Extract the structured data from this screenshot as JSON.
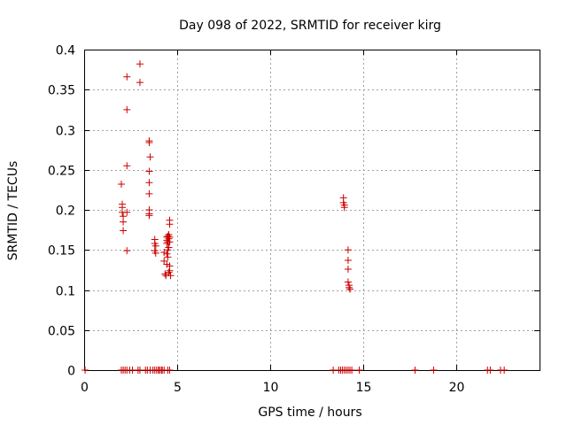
{
  "chart_data": {
    "type": "scatter",
    "title": "Day 098 of 2022, SRMTID for receiver kirg",
    "xlabel": "GPS time / hours",
    "ylabel": "SRMTID / TECUs",
    "xlim": [
      0,
      24.5
    ],
    "ylim": [
      0,
      0.4
    ],
    "xticks": [
      0,
      5,
      10,
      15,
      20
    ],
    "yticks": [
      0,
      0.05,
      0.1,
      0.15,
      0.2,
      0.25,
      0.3,
      0.35,
      0.4
    ],
    "xtick_labels": [
      "0",
      "5",
      "10",
      "15",
      "20"
    ],
    "ytick_labels": [
      "0",
      "0.05",
      "0.1",
      "0.15",
      "0.2",
      "0.25",
      "0.3",
      "0.35",
      "0.4"
    ],
    "grid": true,
    "marker": "+",
    "marker_color": "#cc0000",
    "series": [
      {
        "name": "SRMTID",
        "points": [
          [
            2.0,
            0.232
          ],
          [
            2.05,
            0.207
          ],
          [
            2.05,
            0.203
          ],
          [
            2.05,
            0.197
          ],
          [
            2.1,
            0.192
          ],
          [
            2.1,
            0.185
          ],
          [
            2.1,
            0.174
          ],
          [
            2.3,
            0.366
          ],
          [
            2.3,
            0.325
          ],
          [
            2.3,
            0.255
          ],
          [
            2.3,
            0.197
          ],
          [
            2.3,
            0.149
          ],
          [
            3.0,
            0.382
          ],
          [
            3.0,
            0.359
          ],
          [
            3.5,
            0.286
          ],
          [
            3.5,
            0.284
          ],
          [
            3.55,
            0.266
          ],
          [
            3.5,
            0.248
          ],
          [
            3.5,
            0.234
          ],
          [
            3.5,
            0.22
          ],
          [
            3.5,
            0.2
          ],
          [
            3.5,
            0.195
          ],
          [
            3.5,
            0.193
          ],
          [
            3.8,
            0.163
          ],
          [
            3.8,
            0.158
          ],
          [
            3.85,
            0.155
          ],
          [
            3.8,
            0.149
          ],
          [
            3.85,
            0.146
          ],
          [
            4.3,
            0.147
          ],
          [
            4.3,
            0.136
          ],
          [
            4.35,
            0.12
          ],
          [
            4.4,
            0.118
          ],
          [
            4.45,
            0.166
          ],
          [
            4.45,
            0.162
          ],
          [
            4.45,
            0.158
          ],
          [
            4.45,
            0.145
          ],
          [
            4.45,
            0.132
          ],
          [
            4.5,
            0.167
          ],
          [
            4.5,
            0.16
          ],
          [
            4.5,
            0.15
          ],
          [
            4.5,
            0.141
          ],
          [
            4.55,
            0.169
          ],
          [
            4.55,
            0.164
          ],
          [
            4.55,
            0.153
          ],
          [
            4.55,
            0.122
          ],
          [
            4.6,
            0.187
          ],
          [
            4.6,
            0.182
          ],
          [
            4.6,
            0.166
          ],
          [
            4.6,
            0.16
          ],
          [
            4.6,
            0.13
          ],
          [
            4.6,
            0.124
          ],
          [
            4.65,
            0.118
          ],
          [
            13.95,
            0.215
          ],
          [
            13.95,
            0.209
          ],
          [
            14.0,
            0.206
          ],
          [
            14.0,
            0.203
          ],
          [
            14.2,
            0.15
          ],
          [
            14.2,
            0.137
          ],
          [
            14.2,
            0.126
          ],
          [
            14.2,
            0.11
          ],
          [
            14.25,
            0.106
          ],
          [
            14.25,
            0.103
          ],
          [
            14.3,
            0.101
          ],
          [
            0.05,
            0
          ],
          [
            2.0,
            0
          ],
          [
            2.1,
            0
          ],
          [
            2.2,
            0
          ],
          [
            2.3,
            0
          ],
          [
            2.45,
            0
          ],
          [
            2.6,
            0
          ],
          [
            2.9,
            0
          ],
          [
            3.0,
            0
          ],
          [
            3.3,
            0
          ],
          [
            3.4,
            0
          ],
          [
            3.55,
            0
          ],
          [
            3.7,
            0
          ],
          [
            3.8,
            0
          ],
          [
            3.9,
            0
          ],
          [
            4.0,
            0
          ],
          [
            4.05,
            0
          ],
          [
            4.15,
            0
          ],
          [
            4.2,
            0
          ],
          [
            4.3,
            0
          ],
          [
            4.5,
            0
          ],
          [
            4.6,
            0
          ],
          [
            13.4,
            0
          ],
          [
            13.7,
            0
          ],
          [
            13.8,
            0
          ],
          [
            13.9,
            0
          ],
          [
            14.0,
            0
          ],
          [
            14.1,
            0
          ],
          [
            14.2,
            0
          ],
          [
            14.3,
            0
          ],
          [
            14.4,
            0
          ],
          [
            14.8,
            0
          ],
          [
            17.8,
            0
          ],
          [
            18.8,
            0
          ],
          [
            21.7,
            0
          ],
          [
            21.85,
            0
          ],
          [
            22.4,
            0
          ],
          [
            22.6,
            0
          ]
        ]
      }
    ]
  }
}
